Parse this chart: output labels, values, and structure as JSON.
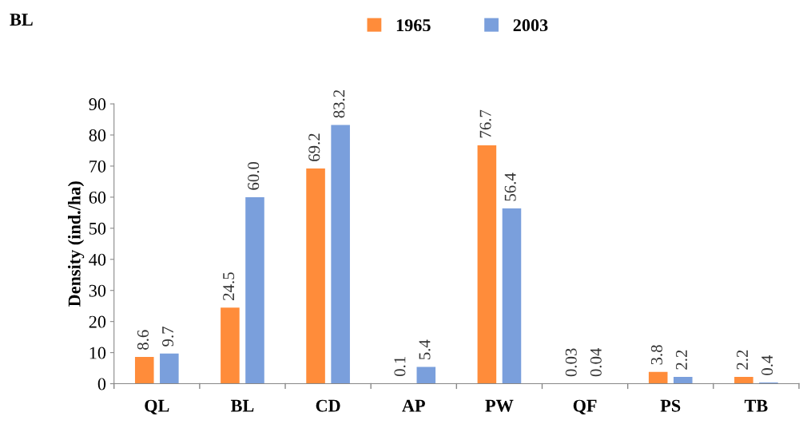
{
  "chart_data": {
    "type": "bar",
    "title": "BL",
    "ylabel": "Density (ind./ha)",
    "categories": [
      "QL",
      "BL",
      "CD",
      "AP",
      "PW",
      "QF",
      "PS",
      "TB"
    ],
    "series": [
      {
        "name": "1965",
        "color": "#ff8c3a",
        "values": [
          8.6,
          24.5,
          69.2,
          0.1,
          76.7,
          0.03,
          3.8,
          2.2
        ],
        "value_labels": [
          "8.6",
          "24.5",
          "69.2",
          "0.1",
          "76.7",
          "0.03",
          "3.8",
          "2.2"
        ]
      },
      {
        "name": "2003",
        "color": "#7a9fdc",
        "values": [
          9.7,
          60.0,
          83.2,
          5.4,
          56.4,
          0.04,
          2.2,
          0.4
        ],
        "value_labels": [
          "9.7",
          "60.0",
          "83.2",
          "5.4",
          "56.4",
          "0.04",
          "2.2",
          "0.4"
        ]
      }
    ],
    "ylim": [
      0,
      90
    ],
    "yticks": [
      0,
      10,
      20,
      30,
      40,
      50,
      60,
      70,
      80,
      90
    ],
    "grid": false,
    "legend": "top"
  }
}
